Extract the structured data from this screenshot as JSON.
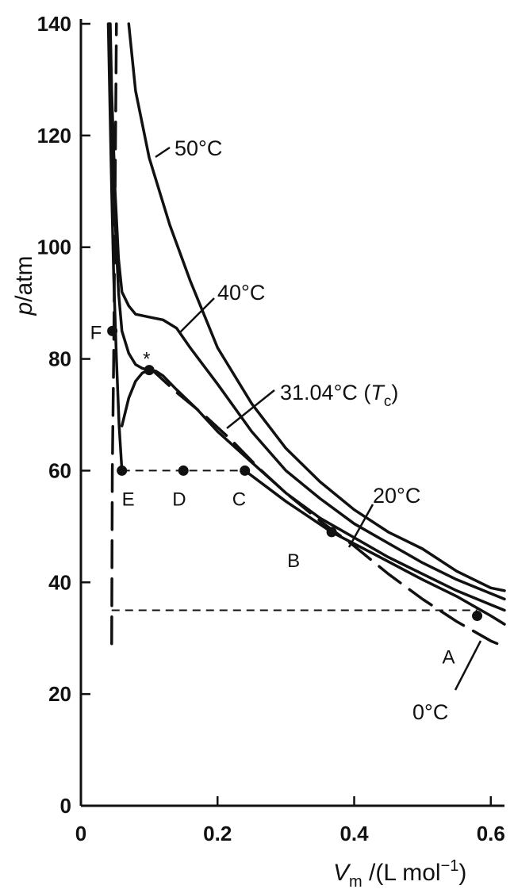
{
  "chart_data": {
    "type": "line",
    "title": "",
    "xlabel": "V_m /(L mol^-1)",
    "ylabel": "p/atm",
    "xlim": [
      0,
      0.62
    ],
    "ylim": [
      0,
      140
    ],
    "x_ticks": [
      0,
      0.2,
      0.4,
      0.6
    ],
    "x_tick_labels": [
      "0",
      "0.2",
      "0.4",
      "0.6"
    ],
    "y_ticks": [
      0,
      20,
      40,
      60,
      80,
      100,
      120,
      140
    ],
    "y_tick_labels": [
      "0",
      "20",
      "40",
      "60",
      "80",
      "100",
      "120",
      "140"
    ],
    "grid": false,
    "legend": "none",
    "series": [
      {
        "name": "50°C",
        "style": "solid",
        "x": [
          0.07,
          0.08,
          0.1,
          0.13,
          0.16,
          0.2,
          0.25,
          0.3,
          0.35,
          0.4,
          0.45,
          0.5,
          0.55,
          0.6,
          0.62
        ],
        "y": [
          140,
          128,
          116,
          104,
          94,
          82,
          72,
          64,
          58,
          53,
          49,
          46,
          42,
          39,
          38.5
        ]
      },
      {
        "name": "40°C",
        "style": "solid",
        "x": [
          0.043,
          0.045,
          0.05,
          0.055,
          0.06,
          0.07,
          0.08,
          0.1,
          0.12,
          0.14,
          0.16,
          0.2,
          0.25,
          0.3,
          0.35,
          0.4,
          0.45,
          0.5,
          0.55,
          0.6,
          0.62
        ],
        "y": [
          140,
          128,
          110,
          98,
          92,
          89.5,
          88,
          87.5,
          87,
          85.5,
          82,
          75.5,
          67,
          60,
          55,
          50.5,
          47,
          43.5,
          40.5,
          38,
          37
        ]
      },
      {
        "name": "31.04°C (T_c)",
        "style": "solid",
        "x": [
          0.042,
          0.045,
          0.05,
          0.055,
          0.06,
          0.07,
          0.08,
          0.09,
          0.1,
          0.11,
          0.12,
          0.14,
          0.17,
          0.2,
          0.25,
          0.3,
          0.35,
          0.4,
          0.45,
          0.5,
          0.55,
          0.6,
          0.62
        ],
        "y": [
          140,
          125,
          105,
          92,
          85,
          81,
          79,
          78.3,
          78,
          77.8,
          77,
          74.5,
          71,
          67,
          61.5,
          56,
          51.5,
          48,
          44.5,
          41.5,
          38.5,
          36,
          35
        ]
      },
      {
        "name": "20°C",
        "style": "solid",
        "x": [
          0.04,
          0.042,
          0.045,
          0.048,
          0.052,
          0.056,
          0.06
        ],
        "y": [
          140,
          128,
          110,
          95,
          80,
          68,
          60
        ],
        "x2": [
          0.06,
          0.07,
          0.08,
          0.09,
          0.1,
          0.11
        ],
        "y2": [
          68,
          73,
          76,
          77.5,
          78,
          77.8
        ]
      },
      {
        "name": "20°C",
        "style": "solid",
        "x": [
          0.24,
          0.3,
          0.367,
          0.43,
          0.5,
          0.55,
          0.6,
          0.62
        ],
        "y": [
          60,
          54.5,
          49,
          45,
          40.5,
          37.5,
          34,
          32.5
        ]
      },
      {
        "name": "0°C",
        "style": "dashed",
        "x": [
          0.045,
          0.046,
          0.048,
          0.05,
          0.052
        ],
        "y": [
          29,
          60,
          80,
          110,
          140
        ],
        "x2": [
          0.1,
          0.14,
          0.18,
          0.22,
          0.26,
          0.3,
          0.35,
          0.4,
          0.45,
          0.5,
          0.55,
          0.6,
          0.62
        ],
        "y2": [
          78.5,
          74,
          70,
          65.5,
          60.5,
          56,
          51,
          46.5,
          41.5,
          37,
          33,
          29.5,
          28.5
        ]
      }
    ],
    "tie_lines": [
      {
        "y": 60,
        "x": [
          0.06,
          0.24
        ],
        "style": "dashed"
      },
      {
        "y": 35,
        "x": [
          0.045,
          0.58
        ],
        "style": "dashed"
      }
    ],
    "points": [
      {
        "label": "A",
        "x": 0.58,
        "y": 34
      },
      {
        "label": "B",
        "x": 0.367,
        "y": 49
      },
      {
        "label": "C",
        "x": 0.24,
        "y": 60
      },
      {
        "label": "D",
        "x": 0.15,
        "y": 60
      },
      {
        "label": "E",
        "x": 0.06,
        "y": 60
      },
      {
        "label": "F",
        "x": 0.046,
        "y": 85
      },
      {
        "label": "*",
        "x": 0.1,
        "y": 78
      }
    ],
    "annotations": {
      "t50": "50°C",
      "t40": "40°C",
      "tc_value": "31.04°C (",
      "tc_symbol": "T",
      "tc_sub": "c",
      "tc_close": ")",
      "t20": "20°C",
      "t0": "0°C"
    }
  }
}
